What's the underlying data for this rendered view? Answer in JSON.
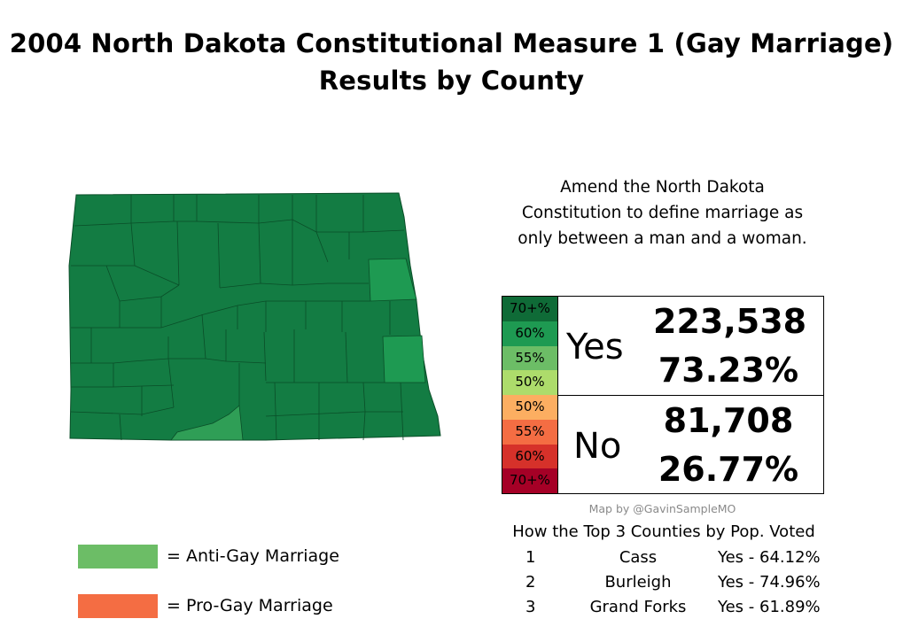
{
  "title": {
    "line1": "2004 North Dakota Constitutional Measure 1 (Gay Marriage)",
    "line2": "Results by County"
  },
  "description": {
    "line1": "Amend the North Dakota",
    "line2": "Constitution to define marriage as",
    "line3": "only between a man and a woman."
  },
  "results": {
    "yes": {
      "label": "Yes",
      "votes": "223,538",
      "percent": "73.23%"
    },
    "no": {
      "label": "No",
      "votes": "81,708",
      "percent": "26.77%"
    }
  },
  "scale": [
    {
      "label": "70+%",
      "color": "#0f6b37"
    },
    {
      "label": "60%",
      "color": "#1e9a52"
    },
    {
      "label": "55%",
      "color": "#6cbd66"
    },
    {
      "label": "50%",
      "color": "#addc6b"
    },
    {
      "label": "50%",
      "color": "#fcae61"
    },
    {
      "label": "55%",
      "color": "#f46d43"
    },
    {
      "label": "60%",
      "color": "#d6312a"
    },
    {
      "label": "70+%",
      "color": "#a50026"
    }
  ],
  "credit": "Map by @GavinSampleMO",
  "top3": {
    "heading": "How the Top 3 Counties by Pop. Voted",
    "rows": [
      {
        "rank": "1",
        "county": "Cass",
        "result": "Yes - 64.12%"
      },
      {
        "rank": "2",
        "county": "Burleigh",
        "result": "Yes - 74.96%"
      },
      {
        "rank": "3",
        "county": "Grand Forks",
        "result": "Yes - 61.89%"
      }
    ]
  },
  "legend": {
    "anti": {
      "label": "=  Anti-Gay Marriage",
      "color": "#6cbd66"
    },
    "pro": {
      "label": "=  Pro-Gay Marriage",
      "color": "#f46d43"
    }
  },
  "map_colors": {
    "dark": "#137c43",
    "medium": "#1e9a52",
    "light": "#2f9e56",
    "border": "#0a4e28"
  }
}
